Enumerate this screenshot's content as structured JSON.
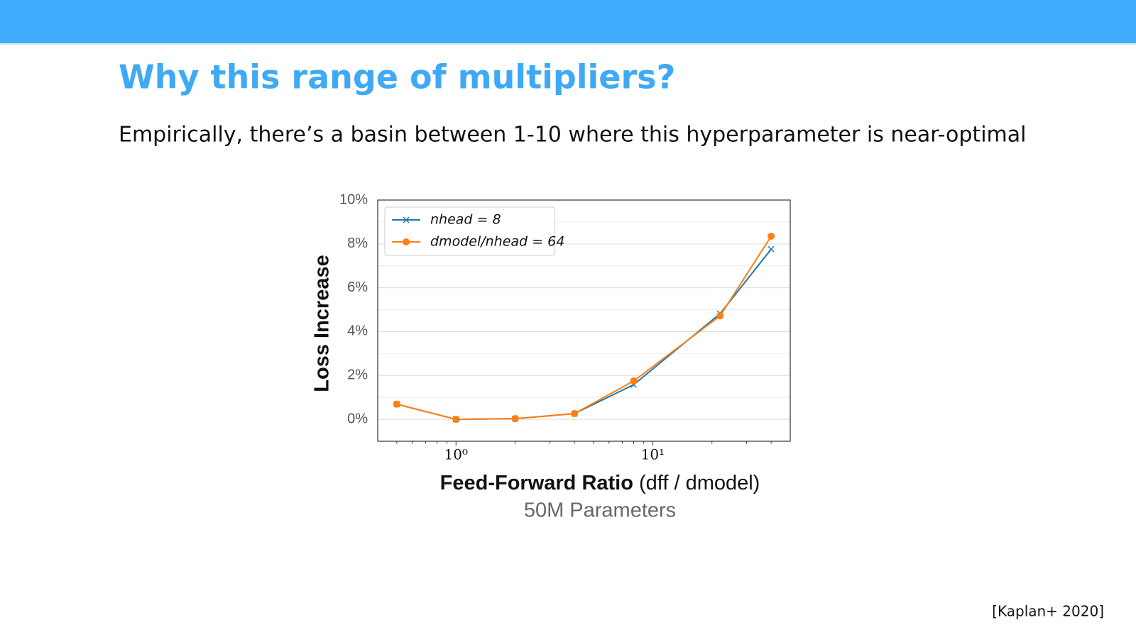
{
  "slide": {
    "title": "Why this range of multipliers?",
    "body": "Empirically, there’s a  basin between 1-10 where this hyperparameter is near-optimal",
    "citation": "[Kaplan+ 2020]"
  },
  "chart_data": {
    "type": "line",
    "xlabel": "Feed-Forward Ratio",
    "xlabel_note": "(dff / dmodel)",
    "subtitle": "50M Parameters",
    "ylabel": "Loss Increase",
    "x": [
      0.5,
      1,
      2,
      4,
      8,
      22,
      40
    ],
    "series": [
      {
        "name": "nhead = 8",
        "color": "#1f77b4",
        "marker": "x",
        "values": [
          0.69,
          0,
          0.03,
          0.26,
          1.58,
          4.82,
          7.76
        ]
      },
      {
        "name": "dmodel/nhead = 64",
        "color": "#ff7f0e",
        "marker": "o",
        "values": [
          0.69,
          0,
          0.03,
          0.26,
          1.75,
          4.72,
          8.35
        ]
      }
    ],
    "xscale": "log",
    "xlim": [
      0.4,
      50
    ],
    "xticks": [
      {
        "value": 1,
        "label": "10⁰"
      },
      {
        "value": 10,
        "label": "10¹"
      }
    ],
    "xminor": [
      0.5,
      0.6,
      0.7,
      0.8,
      0.9,
      2,
      3,
      4,
      5,
      6,
      7,
      8,
      9,
      20,
      30,
      40
    ],
    "ylim": [
      -1,
      10
    ],
    "yticks": [
      {
        "value": 0,
        "label": "0%"
      },
      {
        "value": 2,
        "label": "2%"
      },
      {
        "value": 4,
        "label": "4%"
      },
      {
        "value": 6,
        "label": "6%"
      },
      {
        "value": 8,
        "label": "8%"
      },
      {
        "value": 10,
        "label": "10%"
      }
    ],
    "yminor": [
      1,
      3,
      5,
      7,
      9
    ],
    "grid": true,
    "legend": "upper left"
  }
}
